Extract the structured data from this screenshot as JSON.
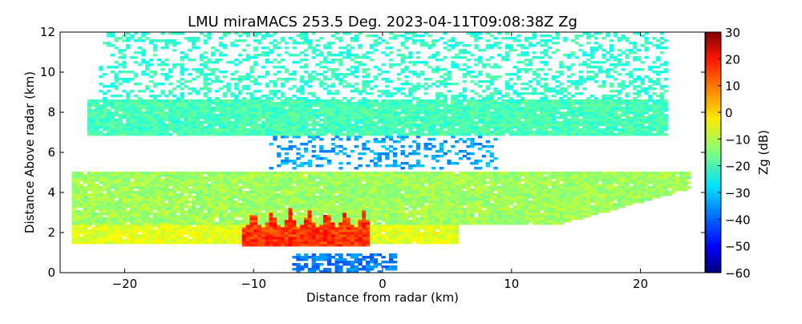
{
  "chart_data": {
    "type": "heatmap",
    "title": "LMU miraMACS 253.5 Deg. 2023-04-11T09:08:38Z  Zg",
    "xlabel": "Distance from radar (km)",
    "ylabel": "Distance Above radar  (km)",
    "xlim": [
      -25,
      25
    ],
    "ylim": [
      0,
      12
    ],
    "xticks": [
      -20,
      -10,
      0,
      10,
      20
    ],
    "yticks": [
      0,
      2,
      4,
      6,
      8,
      10,
      12
    ],
    "colorbar": {
      "label": "Zg (dB)",
      "range": [
        -60,
        30
      ],
      "ticks": [
        30,
        20,
        10,
        0,
        -10,
        -20,
        -30,
        -40,
        -50,
        -60
      ],
      "colormap": "jet"
    },
    "regions": [
      {
        "name": "sparse-upper-echo",
        "x": [
          -22,
          22
        ],
        "z": [
          8.6,
          12
        ],
        "zg": -22,
        "coverage": 0.35
      },
      {
        "name": "upper-cloud-layer",
        "x": [
          -23,
          22
        ],
        "z": [
          6.8,
          8.6
        ],
        "zg": -20,
        "coverage": 0.95
      },
      {
        "name": "clear-gap-echo",
        "x": [
          -9,
          9
        ],
        "z": [
          5.2,
          6.8
        ],
        "zg": -34,
        "coverage": 0.3
      },
      {
        "name": "mid-cloud-layer",
        "x": [
          -24,
          24
        ],
        "z": [
          2.4,
          5.1
        ],
        "zg": -12,
        "coverage": 0.97
      },
      {
        "name": "low-layer",
        "x": [
          -24,
          6
        ],
        "z": [
          1.4,
          2.4
        ],
        "zg": -6,
        "coverage": 0.95
      },
      {
        "name": "precipitation-core",
        "x": [
          -11,
          -1
        ],
        "z": [
          1.3,
          3.2
        ],
        "zg": 12,
        "coverage": 1.0
      },
      {
        "name": "near-surface-echo",
        "x": [
          -7,
          1
        ],
        "z": [
          0,
          0.9
        ],
        "zg": -38,
        "coverage": 0.6
      }
    ]
  }
}
